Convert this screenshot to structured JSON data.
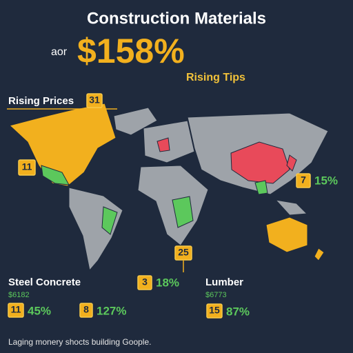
{
  "header": {
    "title": "Construction Materials",
    "prefix": "aor",
    "headline": "$158%",
    "subtitle": "Rising Tips"
  },
  "rising_prices": {
    "label": "Rising Prices",
    "badge": "31"
  },
  "markers": [
    {
      "badge": "11"
    },
    {
      "badge": "7",
      "value": "15%"
    },
    {
      "badge": "25"
    },
    {
      "badge": "3",
      "value": "18%"
    }
  ],
  "panels": [
    {
      "title": "Steel Concrete",
      "price": "$6182",
      "items": [
        {
          "badge": "11",
          "value": "45%"
        },
        {
          "badge": "8",
          "value": "127%"
        }
      ]
    },
    {
      "title": "Lumber",
      "price": "$6773",
      "items": [
        {
          "badge": "15",
          "value": "87%"
        }
      ]
    }
  ],
  "footer": "Laging monery shocts building Goople."
}
